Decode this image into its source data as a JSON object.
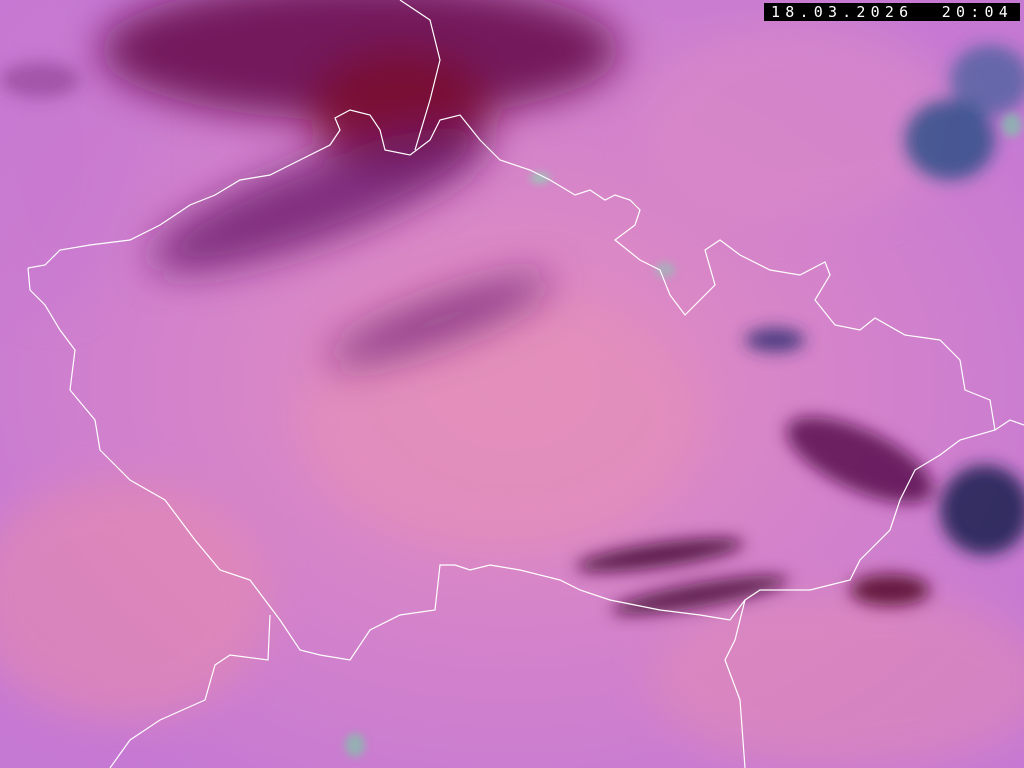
{
  "image": {
    "type": "satellite-composite",
    "timestamp": "18.03.2026  20:04",
    "colors": {
      "background": "#d97fc8",
      "cloud_dark": "#5a1450",
      "cloud_red": "#7a1030",
      "cloud_blue": "#1a3a70",
      "border": "#ffffff"
    }
  }
}
